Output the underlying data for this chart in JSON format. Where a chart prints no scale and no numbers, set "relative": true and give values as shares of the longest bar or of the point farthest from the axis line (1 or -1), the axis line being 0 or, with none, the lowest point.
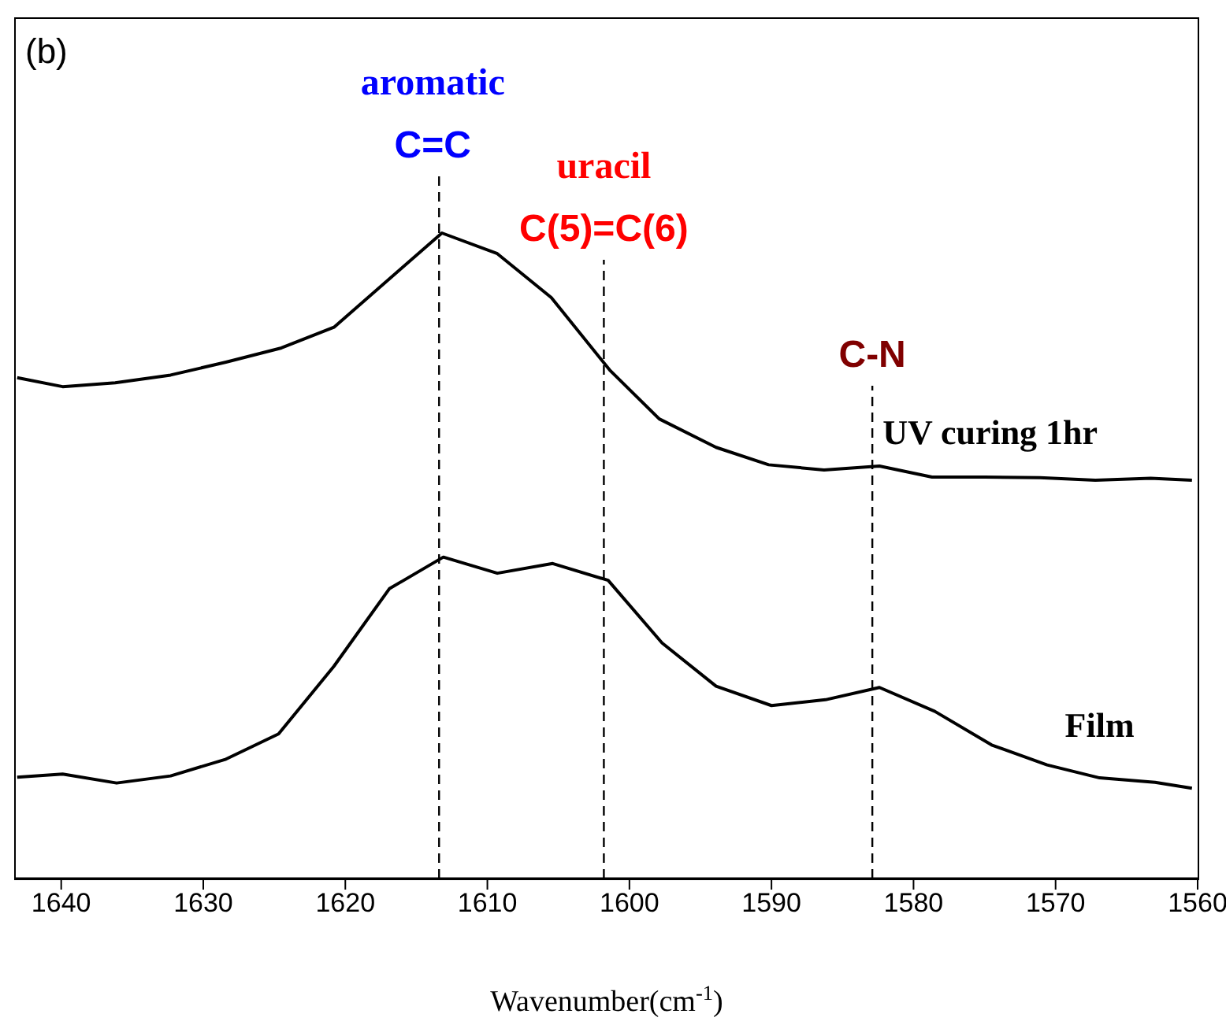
{
  "chart_data": {
    "type": "line",
    "relative": true,
    "xlabel": "Wavenumber(cm$^{-1}$)",
    "xlim": [
      1643.2,
      1560
    ],
    "xticks": [
      1640,
      1630,
      1620,
      1610,
      1600,
      1590,
      1580,
      1570,
      1560
    ],
    "tick_labels": "x",
    "line_style": "solid",
    "annotations": [
      "(b)"
    ],
    "ref_lines": [
      {
        "axis": "x",
        "value": 1613.4,
        "label": "aromatic\nC=C",
        "line_style": "dashed",
        "color": "#000000"
      },
      {
        "axis": "x",
        "value": 1601.8,
        "label": "uracil\nC(5)=C(6)",
        "line_style": "dashed",
        "color": "#000000"
      },
      {
        "axis": "x",
        "value": 1582.9,
        "label": "C-N",
        "line_style": "dashed",
        "color": "#000000"
      }
    ],
    "series": [
      {
        "name": "UV curing 1hr",
        "color": "#000000",
        "x": [
          1643.1,
          1639.9,
          1636.2,
          1632.3,
          1628.4,
          1624.5,
          1620.8,
          1613.2,
          1609.3,
          1605.5,
          1601.4,
          1597.9,
          1593.9,
          1590.2,
          1586.3,
          1582.4,
          1578.7,
          1575.0,
          1571.1,
          1567.2,
          1563.3,
          1560.4
        ],
        "values": [
          0.776,
          0.762,
          0.768,
          0.78,
          0.8,
          0.822,
          0.854,
          1,
          0.968,
          0.9,
          0.788,
          0.712,
          0.668,
          0.641,
          0.633,
          0.639,
          0.622,
          0.622,
          0.621,
          0.617,
          0.62,
          0.617
        ]
      },
      {
        "name": "Film",
        "color": "#000000",
        "x": [
          1643.1,
          1639.9,
          1636.1,
          1632.3,
          1628.4,
          1624.7,
          1620.8,
          1616.9,
          1613.1,
          1609.3,
          1605.4,
          1601.5,
          1597.7,
          1593.9,
          1590.0,
          1586.2,
          1582.4,
          1578.5,
          1574.5,
          1570.6,
          1566.9,
          1563.0,
          1560.4
        ],
        "values": [
          0.157,
          0.162,
          0.148,
          0.159,
          0.185,
          0.224,
          0.329,
          0.449,
          0.498,
          0.473,
          0.488,
          0.462,
          0.365,
          0.298,
          0.268,
          0.277,
          0.296,
          0.259,
          0.207,
          0.176,
          0.156,
          0.149,
          0.14
        ]
      }
    ]
  }
}
